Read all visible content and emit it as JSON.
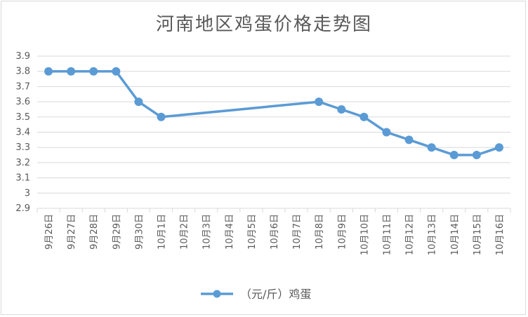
{
  "chart_data": {
    "type": "line",
    "title": "河南地区鸡蛋价格走势图",
    "categories": [
      "9月26日",
      "9月27日",
      "9月28日",
      "9月29日",
      "9月30日",
      "10月1日",
      "10月2日",
      "10月3日",
      "10月4日",
      "10月5日",
      "10月6日",
      "10月7日",
      "10月8日",
      "10月9日",
      "10月10日",
      "10月11日",
      "10月12日",
      "10月13日",
      "10月14日",
      "10月15日",
      "10月16日"
    ],
    "series": [
      {
        "name": "（元/斤）鸡蛋",
        "values": [
          3.8,
          3.8,
          3.8,
          3.8,
          3.6,
          3.5,
          null,
          null,
          null,
          null,
          null,
          null,
          3.6,
          3.55,
          3.5,
          3.4,
          3.35,
          3.3,
          3.25,
          3.25,
          3.3
        ],
        "color": "#5b9bd5"
      }
    ],
    "ylim": [
      2.9,
      3.9
    ],
    "yticks": [
      "2.9",
      "3",
      "3.1",
      "3.2",
      "3.3",
      "3.4",
      "3.5",
      "3.6",
      "3.7",
      "3.8",
      "3.9"
    ],
    "grid": true,
    "legend": "bottom"
  }
}
